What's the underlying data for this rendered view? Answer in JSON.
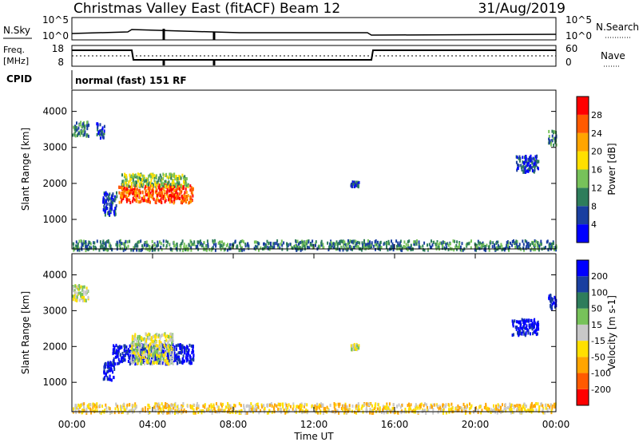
{
  "header": {
    "station": "Christmas Valley East (fitACF)",
    "beam": "Beam 12",
    "date": "31/Aug/2019"
  },
  "noise_panel": {
    "left_label": "N.Sky",
    "right_label": "N.Search",
    "left_ticks": [
      "10^5",
      "10^0"
    ],
    "right_ticks": [
      "10^5",
      "10^0"
    ]
  },
  "freq_panel": {
    "left_label_1": "Freq.",
    "left_label_2": "[MHz]",
    "right_label": "Nave",
    "left_ticks": [
      "18",
      "8"
    ],
    "right_ticks": [
      "60",
      "0"
    ]
  },
  "cpid": {
    "label": "CPID",
    "mode": "normal (fast) 151 RF"
  },
  "chart_data": [
    {
      "type": "heatmap",
      "name": "power",
      "ylabel": "Slant Range [km]",
      "yticks": [
        1000,
        2000,
        3000,
        4000
      ],
      "ylim": [
        180,
        4590
      ],
      "xlim": [
        0,
        24
      ],
      "colorbar_label": "Power [dB]",
      "colorbar_ticks": [
        4,
        8,
        12,
        16,
        20,
        24,
        28
      ],
      "colorbar_colors": [
        "#0000ff",
        "#1a3fa0",
        "#2e7d5b",
        "#77c25a",
        "#ffe000",
        "#ffa500",
        "#ff5a00",
        "#ff0000"
      ],
      "blobs": [
        {
          "t0": 0.0,
          "t1": 0.8,
          "r0": 3350,
          "r1": 3750,
          "level": 2
        },
        {
          "t0": 1.2,
          "t1": 1.6,
          "r0": 3300,
          "r1": 3700,
          "level": 1
        },
        {
          "t0": 2.3,
          "t1": 6.0,
          "r0": 1500,
          "r1": 2000,
          "level": 6
        },
        {
          "t0": 2.4,
          "t1": 5.8,
          "r0": 1950,
          "r1": 2300,
          "level": 3
        },
        {
          "t0": 1.5,
          "t1": 2.2,
          "r0": 1150,
          "r1": 1800,
          "level": 1
        },
        {
          "t0": 13.8,
          "t1": 14.2,
          "r0": 1950,
          "r1": 2100,
          "level": 1
        },
        {
          "t0": 22.0,
          "t1": 23.1,
          "r0": 2350,
          "r1": 2800,
          "level": 1
        },
        {
          "t0": 23.6,
          "t1": 24.0,
          "r0": 3100,
          "r1": 3500,
          "level": 2
        },
        {
          "t0": 0.0,
          "t1": 24.0,
          "r0": 180,
          "r1": 450,
          "level": 2
        }
      ]
    },
    {
      "type": "heatmap",
      "name": "velocity",
      "ylabel": "Slant Range [km]",
      "yticks": [
        1000,
        2000,
        3000,
        4000
      ],
      "ylim": [
        180,
        4590
      ],
      "xlim": [
        0,
        24
      ],
      "xlabel": "Time UT",
      "xticks": [
        "00:00",
        "04:00",
        "08:00",
        "12:00",
        "16:00",
        "20:00",
        "00:00"
      ],
      "colorbar_label": "Velocity [m s-1]",
      "colorbar_ticks": [
        200,
        100,
        50,
        15,
        -15,
        -50,
        -100,
        -200
      ],
      "colorbar_colors": [
        "#0000ff",
        "#1a3fa0",
        "#2e7d5b",
        "#77c25a",
        "#c8c8c8",
        "#ffe000",
        "#ffa500",
        "#ff5a00",
        "#ff0000"
      ],
      "blobs": [
        {
          "t0": 0.0,
          "t1": 0.8,
          "r0": 3300,
          "r1": 3750,
          "level": 4
        },
        {
          "t0": 2.0,
          "t1": 6.0,
          "r0": 1550,
          "r1": 2100,
          "level": 0
        },
        {
          "t0": 2.9,
          "t1": 5.0,
          "r0": 1550,
          "r1": 2400,
          "level": 4
        },
        {
          "t0": 1.5,
          "t1": 2.1,
          "r0": 1100,
          "r1": 1600,
          "level": 0
        },
        {
          "t0": 13.8,
          "t1": 14.2,
          "r0": 1950,
          "r1": 2100,
          "level": 4
        },
        {
          "t0": 21.8,
          "t1": 23.1,
          "r0": 2350,
          "r1": 2800,
          "level": 0
        },
        {
          "t0": 23.6,
          "t1": 24.0,
          "r0": 3100,
          "r1": 3500,
          "level": 0
        },
        {
          "t0": 0.0,
          "t1": 24.0,
          "r0": 180,
          "r1": 450,
          "level": 5
        }
      ]
    }
  ]
}
